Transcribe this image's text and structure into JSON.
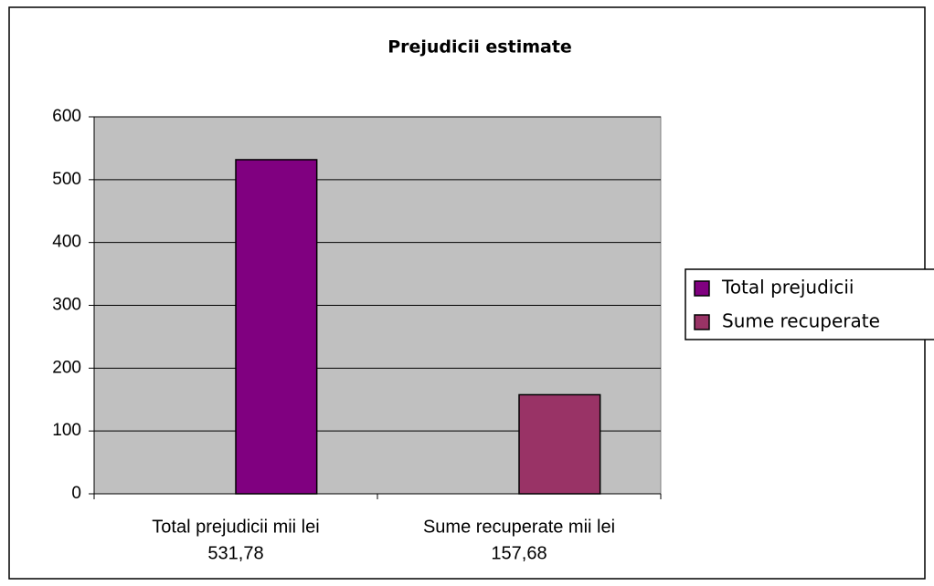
{
  "chart_data": {
    "type": "bar",
    "title": "Prejudicii estimate",
    "categories": [
      [
        "Total prejudicii mii lei",
        "531,78"
      ],
      [
        "Sume recuperate mii lei",
        "157,68"
      ]
    ],
    "series": [
      {
        "name": "Total prejudicii",
        "color": "#800080",
        "values": [
          531.78,
          null
        ]
      },
      {
        "name": "Sume recuperate",
        "color": "#993366",
        "values": [
          null,
          157.68
        ]
      }
    ],
    "ylim": [
      0,
      600
    ],
    "yticks": [
      0,
      100,
      200,
      300,
      400,
      500,
      600
    ],
    "grid": true,
    "legend": "right"
  }
}
